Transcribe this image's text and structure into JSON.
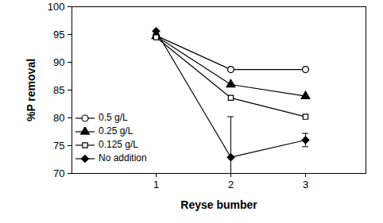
{
  "chart_data": {
    "type": "line",
    "x_label": "Reyse bumber",
    "y_label": "%P removal",
    "categories": [
      "1",
      "2",
      "3"
    ],
    "ylim": [
      70,
      100
    ],
    "yticks": [
      70,
      75,
      80,
      85,
      90,
      95,
      100
    ],
    "legend": "lower left",
    "series": [
      {
        "name": "0.5 g/L",
        "color": "#000000",
        "marker": "open-circle",
        "line_style": "solid",
        "values": [
          94.8,
          88.7,
          88.7
        ]
      },
      {
        "name": "0.25 g/L",
        "color": "#000000",
        "marker": "triangle",
        "line_style": "solid",
        "values": [
          94.7,
          86.0,
          83.9
        ]
      },
      {
        "name": "0.125 g/L",
        "color": "#000000",
        "marker": "open-square",
        "line_style": "solid",
        "values": [
          94.5,
          83.6,
          80.2
        ]
      },
      {
        "name": "No addition",
        "color": "#000000",
        "marker": "diamond",
        "line_style": "solid",
        "values": [
          95.6,
          72.9,
          76.0
        ],
        "errors": [
          null,
          7.3,
          1.2
        ]
      }
    ]
  }
}
